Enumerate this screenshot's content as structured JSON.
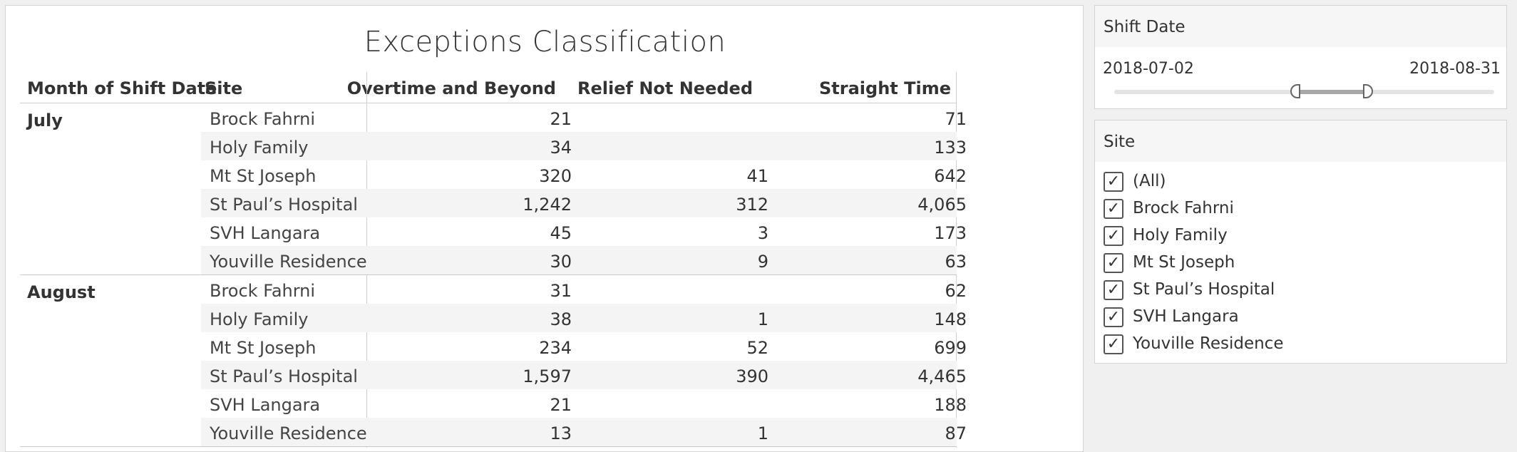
{
  "title": "Exceptions Classification",
  "table": {
    "headers": {
      "month": "Month of Shift Date",
      "site": "Site",
      "overtime": "Overtime and Beyond",
      "relief": "Relief Not Needed",
      "straight": "Straight Time"
    },
    "groups": [
      {
        "month": "July",
        "rows": [
          {
            "site": "Brock Fahrni",
            "overtime": "21",
            "relief": "",
            "straight": "71"
          },
          {
            "site": "Holy Family",
            "overtime": "34",
            "relief": "",
            "straight": "133"
          },
          {
            "site": "Mt St Joseph",
            "overtime": "320",
            "relief": "41",
            "straight": "642"
          },
          {
            "site": "St Paul’s Hospital",
            "overtime": "1,242",
            "relief": "312",
            "straight": "4,065"
          },
          {
            "site": "SVH Langara",
            "overtime": "45",
            "relief": "3",
            "straight": "173"
          },
          {
            "site": "Youville Residence",
            "overtime": "30",
            "relief": "9",
            "straight": "63"
          }
        ]
      },
      {
        "month": "August",
        "rows": [
          {
            "site": "Brock Fahrni",
            "overtime": "31",
            "relief": "",
            "straight": "62"
          },
          {
            "site": "Holy Family",
            "overtime": "38",
            "relief": "1",
            "straight": "148"
          },
          {
            "site": "Mt St Joseph",
            "overtime": "234",
            "relief": "52",
            "straight": "699"
          },
          {
            "site": "St Paul’s Hospital",
            "overtime": "1,597",
            "relief": "390",
            "straight": "4,465"
          },
          {
            "site": "SVH Langara",
            "overtime": "21",
            "relief": "",
            "straight": "188"
          },
          {
            "site": "Youville Residence",
            "overtime": "13",
            "relief": "1",
            "straight": "87"
          }
        ]
      }
    ]
  },
  "filters": {
    "shift_date": {
      "title": "Shift Date",
      "start": "2018-07-02",
      "end": "2018-08-31"
    },
    "site": {
      "title": "Site",
      "options": [
        {
          "label": "(All)",
          "checked": true
        },
        {
          "label": "Brock Fahrni",
          "checked": true
        },
        {
          "label": "Holy Family",
          "checked": true
        },
        {
          "label": "Mt St Joseph",
          "checked": true
        },
        {
          "label": "St Paul’s Hospital",
          "checked": true
        },
        {
          "label": "SVH Langara",
          "checked": true
        },
        {
          "label": "Youville Residence",
          "checked": true
        }
      ]
    }
  },
  "colors": {
    "row_shade": "#f4f4f4",
    "text": "#333333",
    "border": "#d4d4d4"
  },
  "icons": {
    "checkbox_checked": "check-icon",
    "slider_handle": "slider-handle-icon"
  }
}
